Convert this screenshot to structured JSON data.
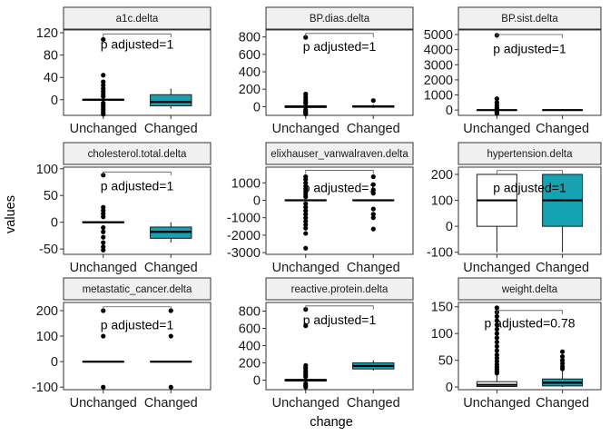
{
  "chart_data": {
    "type": "boxplot",
    "xlabel": "change",
    "ylabel": "values",
    "categories": [
      "Unchanged",
      "Changed"
    ],
    "fill_colors": {
      "Unchanged": "#ffffff",
      "Changed": "#17a2b2"
    },
    "panels": [
      {
        "title": "a1c.delta",
        "annotation": "p adjusted=1",
        "ylim": [
          -28,
          125
        ],
        "yticks": [
          0,
          40,
          80,
          120
        ],
        "bracket_y": 118,
        "annotation_y": 100,
        "boxes": [
          {
            "category": "Unchanged",
            "q1": -1,
            "median": 0,
            "q3": 1,
            "whisker_low": -1,
            "whisker_high": 1,
            "outliers": [
              108,
              44,
              32,
              26,
              20,
              15,
              10,
              6,
              -6,
              -10,
              -14,
              -18,
              -22,
              -26
            ]
          },
          {
            "category": "Changed",
            "q1": -11,
            "median": -4,
            "q3": 9,
            "whisker_low": -16,
            "whisker_high": 20,
            "outliers": []
          }
        ]
      },
      {
        "title": "BP.dias.delta",
        "annotation": "p adjusted=1",
        "ylim": [
          -100,
          880
        ],
        "yticks": [
          0,
          200,
          400,
          600,
          800
        ],
        "bracket_y": 840,
        "annotation_y": 690,
        "boxes": [
          {
            "category": "Unchanged",
            "q1": -10,
            "median": 0,
            "q3": 10,
            "whisker_low": -20,
            "whisker_high": 20,
            "outliers": [
              795,
              145,
              110,
              80,
              55,
              35,
              -35,
              -55,
              -70,
              -85
            ]
          },
          {
            "category": "Changed",
            "q1": -5,
            "median": 0,
            "q3": 10,
            "whisker_low": -15,
            "whisker_high": 25,
            "outliers": [
              70
            ]
          }
        ]
      },
      {
        "title": "BP.sist.delta",
        "annotation": "p adjusted=1",
        "ylim": [
          -350,
          5300
        ],
        "yticks": [
          0,
          1000,
          2000,
          3000,
          4000,
          5000
        ],
        "bracket_y": 5000,
        "annotation_y": 4080,
        "boxes": [
          {
            "category": "Unchanged",
            "q1": -15,
            "median": 0,
            "q3": 15,
            "whisker_low": -30,
            "whisker_high": 30,
            "outliers": [
              4950,
              750,
              500,
              300,
              150,
              80,
              -80,
              -150,
              -230
            ]
          },
          {
            "category": "Changed",
            "q1": -20,
            "median": 0,
            "q3": 20,
            "whisker_low": -40,
            "whisker_high": 40,
            "outliers": []
          }
        ]
      },
      {
        "title": "cholesterol.total.delta",
        "annotation": "p adjusted=1",
        "ylim": [
          -60,
          103
        ],
        "yticks": [
          -50,
          0,
          50,
          100
        ],
        "bracket_y": 94,
        "annotation_y": 68,
        "boxes": [
          {
            "category": "Unchanged",
            "q1": -1,
            "median": 0,
            "q3": 1,
            "whisker_low": -1,
            "whisker_high": 1,
            "outliers": [
              88,
              28,
              22,
              16,
              10,
              -10,
              -18,
              -28,
              -38,
              -46,
              -52
            ]
          },
          {
            "category": "Changed",
            "q1": -30,
            "median": -18,
            "q3": -9,
            "whisker_low": -38,
            "whisker_high": 0,
            "outliers": []
          }
        ]
      },
      {
        "title": "elixhauser_vanwalraven.delta",
        "annotation": "p adjusted=1",
        "ylim": [
          -3100,
          1900
        ],
        "yticks": [
          -3000,
          -2000,
          -1000,
          0,
          1000
        ],
        "bracket_y": 1720,
        "annotation_y": 730,
        "boxes": [
          {
            "category": "Unchanged",
            "q1": -20,
            "median": 0,
            "q3": 20,
            "whisker_low": -40,
            "whisker_high": 40,
            "outliers": [
              1350,
              1200,
              1000,
              800,
              650,
              500,
              350,
              200,
              -200,
              -400,
              -600,
              -800,
              -1000,
              -1200,
              -1400,
              -1600,
              -1900,
              -2750
            ]
          },
          {
            "category": "Changed",
            "q1": -20,
            "median": 0,
            "q3": 20,
            "whisker_low": -40,
            "whisker_high": 40,
            "outliers": [
              1350,
              900,
              600,
              400,
              -500,
              -800,
              -1000,
              -1650
            ]
          }
        ]
      },
      {
        "title": "hypertension.delta",
        "annotation": "p adjusted=1",
        "ylim": [
          -108,
          228
        ],
        "yticks": [
          -100,
          0,
          100,
          200
        ],
        "bracket_y": 215,
        "annotation_y": 150,
        "boxes": [
          {
            "category": "Unchanged",
            "q1": 0,
            "median": 100,
            "q3": 200,
            "whisker_low": -100,
            "whisker_high": 200,
            "outliers": []
          },
          {
            "category": "Changed",
            "q1": 0,
            "median": 100,
            "q3": 200,
            "whisker_low": -100,
            "whisker_high": 200,
            "outliers": []
          }
        ]
      },
      {
        "title": "metastatic_cancer.delta",
        "annotation": "p adjusted=1",
        "ylim": [
          -110,
          232
        ],
        "yticks": [
          -100,
          0,
          100,
          200
        ],
        "bracket_y": 215,
        "annotation_y": 145,
        "boxes": [
          {
            "category": "Unchanged",
            "q1": 0,
            "median": 0,
            "q3": 0,
            "whisker_low": 0,
            "whisker_high": 0,
            "outliers": [
              200,
              100,
              -100
            ]
          },
          {
            "category": "Changed",
            "q1": 0,
            "median": 0,
            "q3": 0,
            "whisker_low": 0,
            "whisker_high": 0,
            "outliers": [
              200,
              100,
              -100
            ]
          }
        ]
      },
      {
        "title": "reactive.protein.delta",
        "annotation": "p adjusted=1",
        "ylim": [
          -110,
          900
        ],
        "yticks": [
          0,
          200,
          400,
          600,
          800
        ],
        "bracket_y": 860,
        "annotation_y": 700,
        "boxes": [
          {
            "category": "Unchanged",
            "q1": -10,
            "median": 0,
            "q3": 10,
            "whisker_low": -20,
            "whisker_high": 20,
            "outliers": [
              820,
              630,
              170,
              140,
              110,
              85,
              60,
              40,
              -40,
              -60,
              -80
            ]
          },
          {
            "category": "Changed",
            "q1": 130,
            "median": 165,
            "q3": 200,
            "whisker_low": 110,
            "whisker_high": 230,
            "outliers": []
          }
        ]
      },
      {
        "title": "weight.delta",
        "annotation": "p adjusted=0.78",
        "ylim": [
          -5,
          158
        ],
        "yticks": [
          0,
          50,
          100,
          150
        ],
        "bracket_y": 143,
        "annotation_y": 120,
        "boxes": [
          {
            "category": "Unchanged",
            "q1": 1,
            "median": 4,
            "q3": 10,
            "whisker_low": 0,
            "whisker_high": 22,
            "outliers": [
              148,
              140,
              132,
              124,
              116,
              108,
              100,
              92,
              84,
              76,
              68,
              60,
              54,
              48,
              42,
              37,
              33,
              29,
              26
            ]
          },
          {
            "category": "Changed",
            "q1": 2,
            "median": 8,
            "q3": 15,
            "whisker_low": 0,
            "whisker_high": 30,
            "outliers": [
              66,
              57,
              50,
              44,
              38,
              34
            ]
          }
        ]
      }
    ]
  }
}
